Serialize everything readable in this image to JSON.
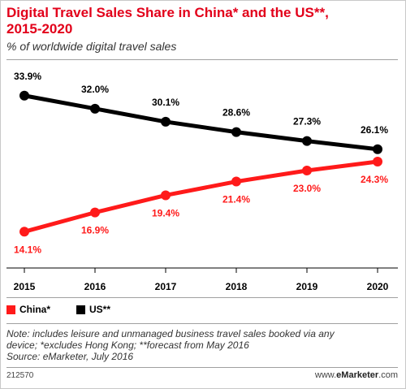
{
  "header": {
    "title_line1": "Digital Travel Sales Share in China* and the US**,",
    "title_line2": "2015-2020",
    "subtitle": "% of worldwide digital travel sales"
  },
  "colors": {
    "title": "#e2001a",
    "china": "#ff1a1a",
    "us": "#000000",
    "divider": "#a0a0a0",
    "axis": "#000000"
  },
  "chart_data": {
    "type": "line",
    "title": "Digital Travel Sales Share in China* and the US**, 2015-2020",
    "subtitle": "% of worldwide digital travel sales",
    "xlabel": "",
    "ylabel": "",
    "categories": [
      "2015",
      "2016",
      "2017",
      "2018",
      "2019",
      "2020"
    ],
    "ylim": [
      10,
      36
    ],
    "grid": false,
    "legend_position": "bottom-left",
    "series": [
      {
        "name": "China*",
        "color": "#ff1a1a",
        "values": [
          14.1,
          16.9,
          19.4,
          21.4,
          23.0,
          24.3
        ],
        "labels": [
          "14.1%",
          "16.9%",
          "19.4%",
          "21.4%",
          "23.0%",
          "24.3%"
        ]
      },
      {
        "name": "US**",
        "color": "#000000",
        "values": [
          33.9,
          32.0,
          30.1,
          28.6,
          27.3,
          26.1
        ],
        "labels": [
          "33.9%",
          "32.0%",
          "30.1%",
          "28.6%",
          "27.3%",
          "26.1%"
        ]
      }
    ]
  },
  "legend": {
    "china_label": "China*",
    "us_label": "US**"
  },
  "notes": {
    "line1": "Note: includes leisure and unmanaged business travel sales booked via any",
    "line2": "device; *excludes Hong Kong; **forecast from May 2016",
    "line3": "Source: eMarketer, July 2016"
  },
  "footer": {
    "chart_id": "212570",
    "site_prefix": "www.",
    "site_brand": "eMarketer",
    "site_suffix": ".com"
  }
}
